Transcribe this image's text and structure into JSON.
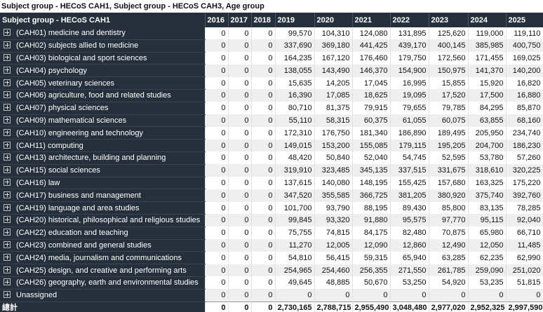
{
  "title": "Subject group - HECoS CAH1, Subject group - HECoS CAH3, Age group",
  "table": {
    "header": [
      "Subject group - HECoS CAH1",
      "2016",
      "2017",
      "2018",
      "2019",
      "2020",
      "2021",
      "2022",
      "2023",
      "2024",
      "2025"
    ],
    "rows": [
      [
        "(CAH01) medicine and dentistry",
        "0",
        "0",
        "0",
        "99,570",
        "104,310",
        "124,080",
        "131,895",
        "125,620",
        "119,000",
        "119,110"
      ],
      [
        "(CAH02) subjects allied to medicine",
        "0",
        "0",
        "0",
        "337,690",
        "369,180",
        "441,425",
        "439,170",
        "400,145",
        "385,985",
        "400,750"
      ],
      [
        "(CAH03) biological and sport sciences",
        "0",
        "0",
        "0",
        "164,235",
        "167,120",
        "176,460",
        "179,750",
        "172,560",
        "171,455",
        "169,025"
      ],
      [
        "(CAH04) psychology",
        "0",
        "0",
        "0",
        "138,055",
        "143,490",
        "146,370",
        "154,900",
        "150,975",
        "141,370",
        "140,200"
      ],
      [
        "(CAH05) veterinary sciences",
        "0",
        "0",
        "0",
        "15,635",
        "14,205",
        "17,045",
        "16,995",
        "15,855",
        "15,920",
        "16,820"
      ],
      [
        "(CAH06) agriculture, food and related studies",
        "0",
        "0",
        "0",
        "16,390",
        "17,085",
        "18,625",
        "19,095",
        "17,520",
        "17,500",
        "16,880"
      ],
      [
        "(CAH07) physical sciences",
        "0",
        "0",
        "0",
        "80,710",
        "81,375",
        "79,915",
        "79,655",
        "79,785",
        "84,295",
        "85,870"
      ],
      [
        "(CAH09) mathematical sciences",
        "0",
        "0",
        "0",
        "55,110",
        "58,315",
        "60,375",
        "61,055",
        "60,075",
        "63,855",
        "68,160"
      ],
      [
        "(CAH10) engineering and technology",
        "0",
        "0",
        "0",
        "172,310",
        "176,750",
        "181,340",
        "186,890",
        "189,495",
        "205,950",
        "234,740"
      ],
      [
        "(CAH11) computing",
        "0",
        "0",
        "0",
        "149,015",
        "153,200",
        "155,085",
        "179,115",
        "195,205",
        "204,700",
        "186,230"
      ],
      [
        "(CAH13) architecture, building and planning",
        "0",
        "0",
        "0",
        "48,420",
        "50,840",
        "52,040",
        "54,745",
        "52,595",
        "53,780",
        "57,260"
      ],
      [
        "(CAH15) social sciences",
        "0",
        "0",
        "0",
        "319,910",
        "323,485",
        "345,135",
        "337,515",
        "331,675",
        "318,610",
        "320,225"
      ],
      [
        "(CAH16) law",
        "0",
        "0",
        "0",
        "137,615",
        "140,080",
        "148,195",
        "155,425",
        "157,680",
        "163,325",
        "175,220"
      ],
      [
        "(CAH17) business and management",
        "0",
        "0",
        "0",
        "347,520",
        "355,585",
        "366,725",
        "381,205",
        "380,920",
        "375,740",
        "392,760"
      ],
      [
        "(CAH19) language and area studies",
        "0",
        "0",
        "0",
        "101,700",
        "93,790",
        "88,195",
        "89,430",
        "85,800",
        "83,135",
        "78,285"
      ],
      [
        "(CAH20) historical, philosophical and religious studies",
        "0",
        "0",
        "0",
        "99,845",
        "93,320",
        "91,880",
        "95,575",
        "97,770",
        "95,115",
        "92,040"
      ],
      [
        "(CAH22) education and teaching",
        "0",
        "0",
        "0",
        "75,755",
        "74,815",
        "84,175",
        "82,480",
        "70,875",
        "65,980",
        "66,710"
      ],
      [
        "(CAH23) combined and general studies",
        "0",
        "0",
        "0",
        "11,270",
        "12,005",
        "12,090",
        "12,860",
        "12,490",
        "12,050",
        "11,485"
      ],
      [
        "(CAH24) media, journalism and communications",
        "0",
        "0",
        "0",
        "54,810",
        "56,415",
        "59,315",
        "65,940",
        "63,285",
        "62,235",
        "62,990"
      ],
      [
        "(CAH25) design, and creative and performing arts",
        "0",
        "0",
        "0",
        "254,965",
        "254,460",
        "256,355",
        "271,550",
        "261,785",
        "259,090",
        "251,020"
      ],
      [
        "(CAH26) geography, earth and environmental studies",
        "0",
        "0",
        "0",
        "49,645",
        "48,885",
        "50,670",
        "53,250",
        "54,920",
        "53,235",
        "51,815"
      ],
      [
        "Unassigned",
        "0",
        "0",
        "0",
        "0",
        "0",
        "0",
        "0",
        "0",
        "0",
        "0"
      ]
    ],
    "total": [
      "總計",
      "0",
      "0",
      "0",
      "2,730,165",
      "2,788,715",
      "2,955,490",
      "3,048,480",
      "2,977,020",
      "2,952,325",
      "2,997,590"
    ]
  }
}
